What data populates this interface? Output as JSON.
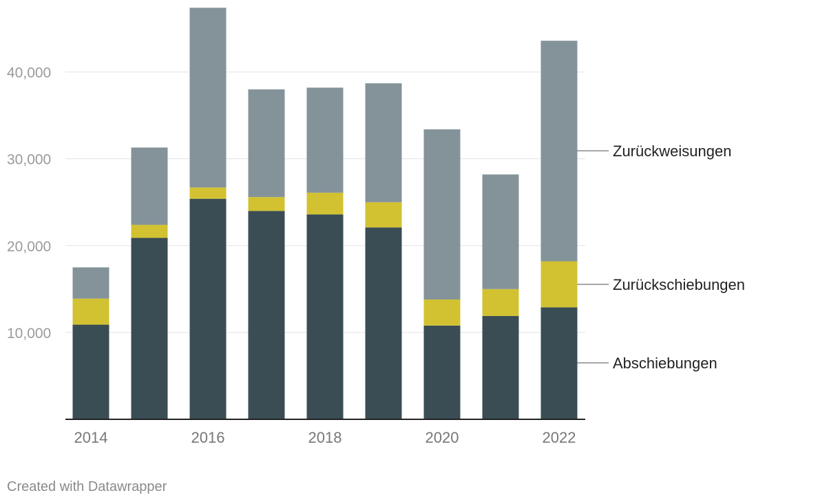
{
  "chart_data": {
    "type": "bar",
    "stacked": true,
    "categories": [
      "2014",
      "2015",
      "2016",
      "2017",
      "2018",
      "2019",
      "2020",
      "2021",
      "2022"
    ],
    "x_tick_labels": [
      "2014",
      "2016",
      "2018",
      "2020",
      "2022"
    ],
    "y_ticks": [
      10000,
      20000,
      30000,
      40000
    ],
    "y_tick_labels": [
      "10,000",
      "20,000",
      "30,000",
      "40,000"
    ],
    "ylim": [
      0,
      47500
    ],
    "grid": true,
    "legend_placement": "right, inline labels",
    "series": [
      {
        "name": "Abschiebungen",
        "color": "#3a4d55",
        "values": [
          10900,
          20900,
          25400,
          24000,
          23600,
          22100,
          10800,
          11900,
          12900
        ]
      },
      {
        "name": "Zurückschiebungen",
        "color": "#d2c232",
        "values": [
          3000,
          1500,
          1300,
          1600,
          2500,
          2900,
          3000,
          3100,
          5300
        ]
      },
      {
        "name": "Zurückweisungen",
        "color": "#84939a",
        "values": [
          3600,
          8900,
          20700,
          12400,
          12100,
          13700,
          19600,
          13200,
          25400
        ]
      }
    ]
  },
  "footer": {
    "credit": "Created with Datawrapper"
  }
}
